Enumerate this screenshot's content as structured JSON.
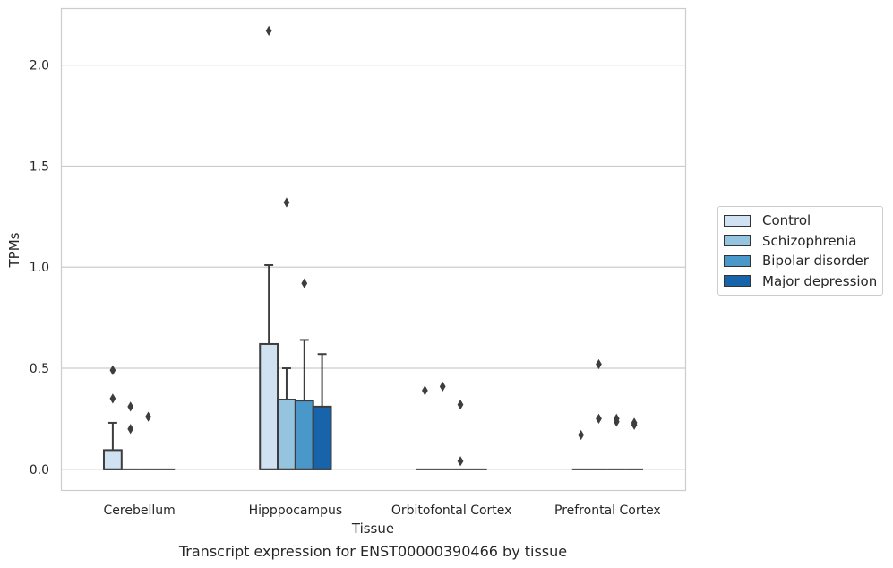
{
  "chart_data": {
    "type": "box",
    "caption": "Transcript expression for ENST00000390466 by tissue",
    "xlabel": "Tissue",
    "ylabel": "TPMs",
    "ylim": [
      -0.105,
      2.28
    ],
    "yticks": [
      0.0,
      0.5,
      1.0,
      1.5,
      2.0
    ],
    "ytick_labels": [
      "0.0",
      "0.5",
      "1.0",
      "1.5",
      "2.0"
    ],
    "grid": "horizontal",
    "legend_position": "right",
    "categories": [
      "Cerebellum",
      "Hipppocampus",
      "Orbitofontal Cortex",
      "Prefrontal Cortex"
    ],
    "series": [
      {
        "name": "Control",
        "color": "#d0e1f2",
        "boxes": [
          {
            "q1": 0.0,
            "median": 0.0,
            "q3": 0.095,
            "whisker_low": 0.0,
            "whisker_high": 0.23,
            "outliers": [
              0.35,
              0.49
            ]
          },
          {
            "q1": 0.0,
            "median": 0.0,
            "q3": 0.62,
            "whisker_low": 0.0,
            "whisker_high": 1.01,
            "outliers": [
              2.17
            ]
          },
          {
            "q1": 0.0,
            "median": 0.0,
            "q3": 0.0,
            "whisker_low": 0.0,
            "whisker_high": 0.0,
            "outliers": [
              0.39
            ]
          },
          {
            "q1": 0.0,
            "median": 0.0,
            "q3": 0.0,
            "whisker_low": 0.0,
            "whisker_high": 0.0,
            "outliers": [
              0.17
            ]
          }
        ]
      },
      {
        "name": "Schizophrenia",
        "color": "#94c4df",
        "boxes": [
          {
            "q1": 0.0,
            "median": 0.0,
            "q3": 0.0,
            "whisker_low": 0.0,
            "whisker_high": 0.0,
            "outliers": [
              0.2,
              0.31
            ]
          },
          {
            "q1": 0.0,
            "median": 0.0,
            "q3": 0.345,
            "whisker_low": 0.0,
            "whisker_high": 0.5,
            "outliers": [
              1.32
            ]
          },
          {
            "q1": 0.0,
            "median": 0.0,
            "q3": 0.0,
            "whisker_low": 0.0,
            "whisker_high": 0.0,
            "outliers": [
              0.41
            ]
          },
          {
            "q1": 0.0,
            "median": 0.0,
            "q3": 0.0,
            "whisker_low": 0.0,
            "whisker_high": 0.0,
            "outliers": [
              0.25,
              0.52
            ]
          }
        ]
      },
      {
        "name": "Bipolar disorder",
        "color": "#4a98c9",
        "boxes": [
          {
            "q1": 0.0,
            "median": 0.0,
            "q3": 0.0,
            "whisker_low": 0.0,
            "whisker_high": 0.0,
            "outliers": [
              0.26
            ]
          },
          {
            "q1": 0.0,
            "median": 0.0,
            "q3": 0.34,
            "whisker_low": 0.0,
            "whisker_high": 0.64,
            "outliers": [
              0.92
            ]
          },
          {
            "q1": 0.0,
            "median": 0.0,
            "q3": 0.0,
            "whisker_low": 0.0,
            "whisker_high": 0.0,
            "outliers": [
              0.04,
              0.32
            ]
          },
          {
            "q1": 0.0,
            "median": 0.0,
            "q3": 0.0,
            "whisker_low": 0.0,
            "whisker_high": 0.0,
            "outliers": [
              0.235,
              0.25
            ]
          }
        ]
      },
      {
        "name": "Major depression",
        "color": "#1764ab",
        "boxes": [
          {
            "q1": 0.0,
            "median": 0.0,
            "q3": 0.0,
            "whisker_low": 0.0,
            "whisker_high": 0.0,
            "outliers": []
          },
          {
            "q1": 0.0,
            "median": 0.0,
            "q3": 0.31,
            "whisker_low": 0.0,
            "whisker_high": 0.57,
            "outliers": []
          },
          {
            "q1": 0.0,
            "median": 0.0,
            "q3": 0.0,
            "whisker_low": 0.0,
            "whisker_high": 0.0,
            "outliers": []
          },
          {
            "q1": 0.0,
            "median": 0.0,
            "q3": 0.0,
            "whisker_low": 0.0,
            "whisker_high": 0.0,
            "outliers": [
              0.22,
              0.23
            ]
          }
        ]
      }
    ]
  }
}
